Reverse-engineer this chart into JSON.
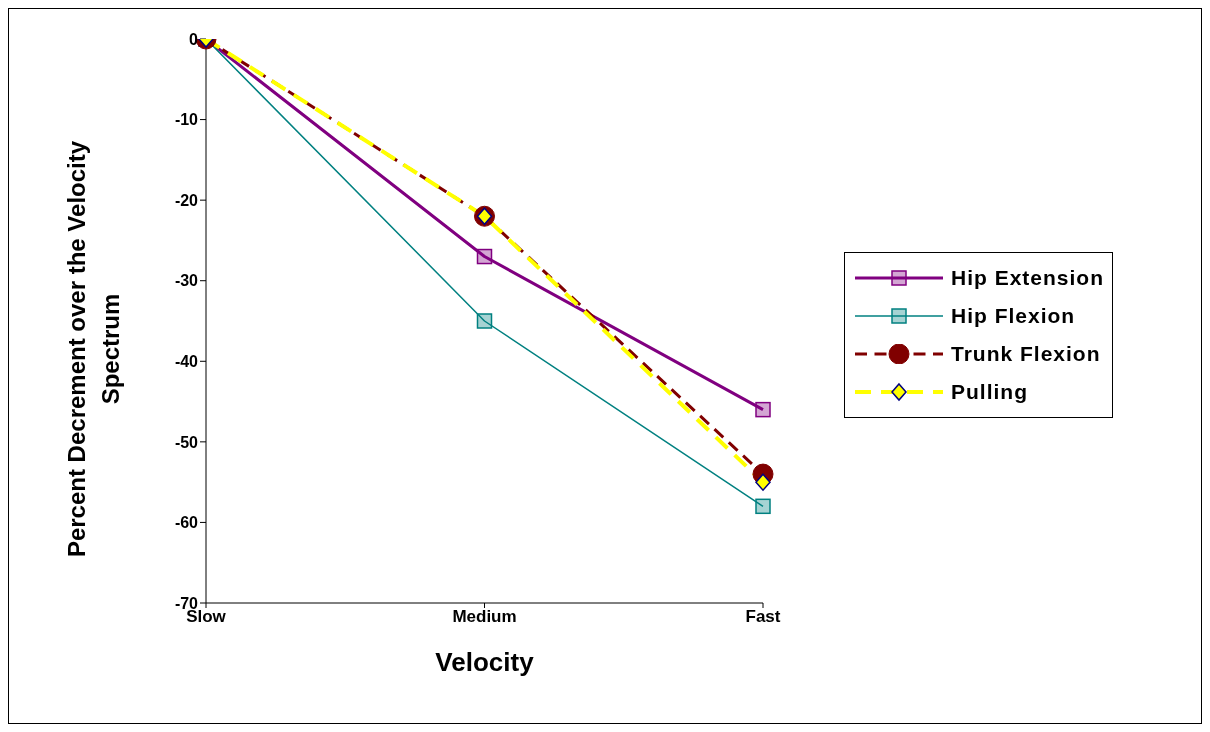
{
  "chart_data": {
    "type": "line",
    "xlabel": "Velocity",
    "ylabel": "Percent Decrement over the Velocity Spectrum",
    "categories": [
      "Slow",
      "Medium",
      "Fast"
    ],
    "ylim": [
      -70,
      0
    ],
    "yticks": [
      0,
      -10,
      -20,
      -30,
      -40,
      -50,
      -60,
      -70
    ],
    "grid": false,
    "legend": "right",
    "series": [
      {
        "name": "Hip Extension",
        "color": "#800080",
        "values": [
          0,
          -27,
          -46
        ],
        "marker": "square",
        "line_style": "solid"
      },
      {
        "name": "Hip Flexion",
        "color": "#008080",
        "values": [
          0,
          -35,
          -58
        ],
        "marker": "square",
        "line_style": "solid"
      },
      {
        "name": "Trunk Flexion",
        "color": "#800000",
        "values": [
          0,
          -22,
          -54
        ],
        "marker": "circle",
        "line_style": "dashed"
      },
      {
        "name": "Pulling",
        "color": "#ffff00",
        "values": [
          0,
          -22,
          -55
        ],
        "marker": "diamond",
        "line_style": "dashed"
      }
    ]
  }
}
